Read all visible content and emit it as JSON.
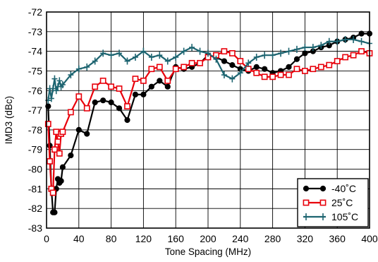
{
  "chart_data": {
    "type": "line",
    "title": "",
    "xlabel": "Tone Spacing (MHz)",
    "ylabel": "IMD3 (dBc)",
    "xlim": [
      0,
      400
    ],
    "ylim": [
      -83,
      -72
    ],
    "xticks": [
      "0",
      "40",
      "80",
      "120",
      "160",
      "200",
      "240",
      "280",
      "320",
      "360",
      "400"
    ],
    "yticks": [
      "-72",
      "-73",
      "-74",
      "-75",
      "-76",
      "-77",
      "-78",
      "-79",
      "-80",
      "-81",
      "-82",
      "-83"
    ],
    "grid": true,
    "legend_position": "bottom-right",
    "series": [
      {
        "name": "-40˚C",
        "color": "#000000",
        "marker": "dot",
        "points": [
          [
            2,
            -76.8
          ],
          [
            4,
            -78.8
          ],
          [
            6,
            -81.0
          ],
          [
            8,
            -82.2
          ],
          [
            10,
            -82.2
          ],
          [
            12,
            -81.0
          ],
          [
            14,
            -80.5
          ],
          [
            16,
            -80.7
          ],
          [
            18,
            -80.6
          ],
          [
            20,
            -79.9
          ],
          [
            30,
            -79.3
          ],
          [
            40,
            -78.0
          ],
          [
            50,
            -78.2
          ],
          [
            60,
            -76.6
          ],
          [
            70,
            -76.5
          ],
          [
            80,
            -76.6
          ],
          [
            90,
            -76.9
          ],
          [
            100,
            -77.5
          ],
          [
            110,
            -76.2
          ],
          [
            120,
            -76.2
          ],
          [
            130,
            -75.8
          ],
          [
            140,
            -75.5
          ],
          [
            150,
            -75.8
          ],
          [
            160,
            -74.8
          ],
          [
            170,
            -74.9
          ],
          [
            180,
            -74.8
          ],
          [
            190,
            -74.6
          ],
          [
            200,
            -74.2
          ],
          [
            210,
            -74.3
          ],
          [
            220,
            -74.5
          ],
          [
            230,
            -74.7
          ],
          [
            240,
            -74.9
          ],
          [
            250,
            -75.0
          ],
          [
            260,
            -74.8
          ],
          [
            270,
            -74.9
          ],
          [
            280,
            -75.1
          ],
          [
            290,
            -75.0
          ],
          [
            300,
            -74.8
          ],
          [
            310,
            -74.4
          ],
          [
            320,
            -74.1
          ],
          [
            330,
            -74.0
          ],
          [
            340,
            -73.8
          ],
          [
            350,
            -73.7
          ],
          [
            360,
            -73.5
          ],
          [
            370,
            -73.4
          ],
          [
            380,
            -73.3
          ],
          [
            390,
            -73.1
          ],
          [
            400,
            -73.1
          ]
        ]
      },
      {
        "name": "25˚C",
        "color": "#e8000b",
        "marker": "square",
        "points": [
          [
            2,
            -77.7
          ],
          [
            4,
            -79.6
          ],
          [
            6,
            -81.0
          ],
          [
            8,
            -81.2
          ],
          [
            10,
            -79.0
          ],
          [
            12,
            -78.1
          ],
          [
            14,
            -78.6
          ],
          [
            16,
            -79.2
          ],
          [
            18,
            -78.2
          ],
          [
            20,
            -78.1
          ],
          [
            30,
            -77.1
          ],
          [
            40,
            -76.3
          ],
          [
            50,
            -76.9
          ],
          [
            60,
            -75.8
          ],
          [
            70,
            -75.5
          ],
          [
            80,
            -75.8
          ],
          [
            90,
            -75.9
          ],
          [
            100,
            -76.8
          ],
          [
            110,
            -75.4
          ],
          [
            120,
            -75.5
          ],
          [
            130,
            -74.9
          ],
          [
            140,
            -74.8
          ],
          [
            150,
            -75.5
          ],
          [
            160,
            -74.9
          ],
          [
            170,
            -74.8
          ],
          [
            180,
            -74.6
          ],
          [
            190,
            -74.6
          ],
          [
            200,
            -74.3
          ],
          [
            210,
            -74.2
          ],
          [
            220,
            -74.0
          ],
          [
            230,
            -74.1
          ],
          [
            240,
            -74.5
          ],
          [
            250,
            -74.9
          ],
          [
            260,
            -75.1
          ],
          [
            270,
            -75.3
          ],
          [
            280,
            -75.3
          ],
          [
            290,
            -75.2
          ],
          [
            300,
            -75.2
          ],
          [
            310,
            -74.9
          ],
          [
            320,
            -75.0
          ],
          [
            330,
            -74.9
          ],
          [
            340,
            -74.8
          ],
          [
            350,
            -74.7
          ],
          [
            360,
            -74.5
          ],
          [
            370,
            -74.3
          ],
          [
            380,
            -74.2
          ],
          [
            390,
            -74.0
          ],
          [
            400,
            -74.1
          ]
        ]
      },
      {
        "name": "105˚C",
        "color": "#1d6470",
        "marker": "plus",
        "points": [
          [
            2,
            -76.5
          ],
          [
            4,
            -75.9
          ],
          [
            6,
            -76.4
          ],
          [
            8,
            -75.9
          ],
          [
            10,
            -75.4
          ],
          [
            12,
            -76.0
          ],
          [
            14,
            -75.8
          ],
          [
            16,
            -75.5
          ],
          [
            18,
            -75.8
          ],
          [
            20,
            -75.7
          ],
          [
            30,
            -75.2
          ],
          [
            40,
            -74.9
          ],
          [
            50,
            -74.8
          ],
          [
            60,
            -74.5
          ],
          [
            70,
            -74.1
          ],
          [
            80,
            -74.2
          ],
          [
            90,
            -74.1
          ],
          [
            100,
            -74.5
          ],
          [
            110,
            -74.3
          ],
          [
            120,
            -74.0
          ],
          [
            130,
            -74.3
          ],
          [
            140,
            -74.2
          ],
          [
            150,
            -74.5
          ],
          [
            160,
            -74.3
          ],
          [
            170,
            -74.0
          ],
          [
            180,
            -73.8
          ],
          [
            190,
            -74.0
          ],
          [
            200,
            -74.1
          ],
          [
            210,
            -74.4
          ],
          [
            220,
            -75.2
          ],
          [
            230,
            -75.4
          ],
          [
            240,
            -75.1
          ],
          [
            250,
            -74.6
          ],
          [
            260,
            -74.3
          ],
          [
            270,
            -74.2
          ],
          [
            280,
            -74.2
          ],
          [
            290,
            -74.1
          ],
          [
            300,
            -74.0
          ],
          [
            310,
            -73.9
          ],
          [
            320,
            -73.8
          ],
          [
            330,
            -73.8
          ],
          [
            340,
            -73.7
          ],
          [
            350,
            -73.5
          ],
          [
            360,
            -73.5
          ],
          [
            370,
            -73.4
          ],
          [
            380,
            -73.4
          ],
          [
            390,
            -73.5
          ],
          [
            400,
            -73.6
          ]
        ]
      }
    ]
  }
}
